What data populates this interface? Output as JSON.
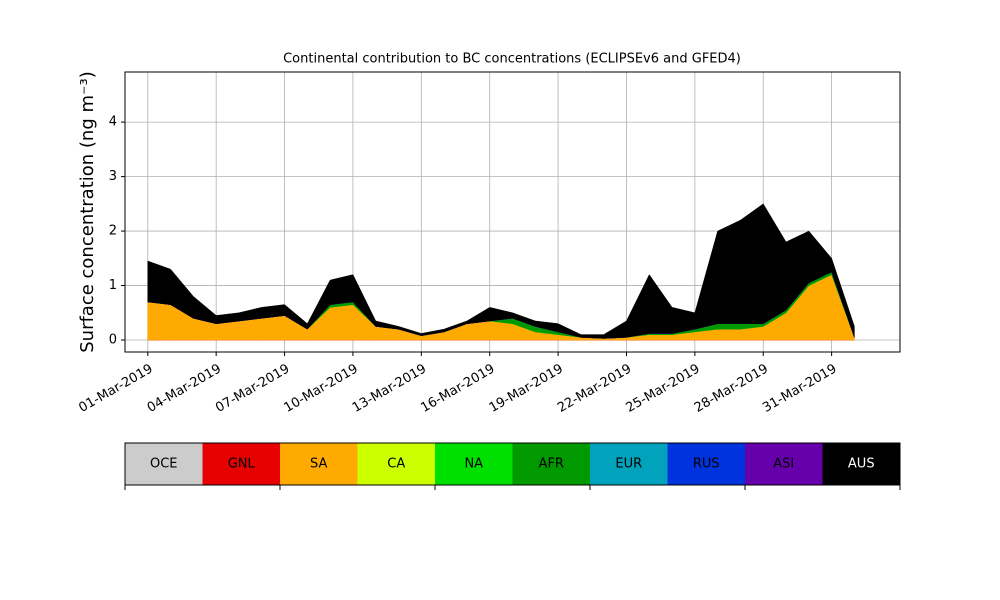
{
  "chart_data": {
    "type": "stacked_area",
    "title": "Continental contribution to BC concentrations (ECLIPSEv6 and GFED4)",
    "y_label": "Surface concentration (ng m⁻³)",
    "x": [
      "2019-03-01",
      "2019-03-02",
      "2019-03-03",
      "2019-03-04",
      "2019-03-05",
      "2019-03-06",
      "2019-03-07",
      "2019-03-08",
      "2019-03-09",
      "2019-03-10",
      "2019-03-11",
      "2019-03-12",
      "2019-03-13",
      "2019-03-14",
      "2019-03-15",
      "2019-03-16",
      "2019-03-17",
      "2019-03-18",
      "2019-03-19",
      "2019-03-20",
      "2019-03-21",
      "2019-03-22",
      "2019-03-23",
      "2019-03-24",
      "2019-03-25",
      "2019-03-26",
      "2019-03-27",
      "2019-03-28",
      "2019-03-29",
      "2019-03-30",
      "2019-03-31",
      "2019-04-01"
    ],
    "series": [
      {
        "name": "OCE",
        "color": "#cccccc",
        "values": [
          0,
          0,
          0,
          0,
          0,
          0,
          0,
          0,
          0,
          0,
          0,
          0,
          0,
          0,
          0,
          0,
          0,
          0,
          0,
          0,
          0,
          0,
          0,
          0,
          0,
          0,
          0,
          0,
          0,
          0,
          0,
          0
        ]
      },
      {
        "name": "GNL",
        "color": "#e60000",
        "values": [
          0,
          0,
          0,
          0,
          0,
          0,
          0,
          0,
          0,
          0,
          0,
          0,
          0,
          0,
          0,
          0,
          0,
          0,
          0,
          0,
          0,
          0,
          0,
          0,
          0,
          0,
          0,
          0,
          0,
          0,
          0,
          0
        ]
      },
      {
        "name": "SA",
        "color": "#ffaa00",
        "values": [
          0.7,
          0.65,
          0.4,
          0.3,
          0.35,
          0.4,
          0.45,
          0.2,
          0.6,
          0.65,
          0.25,
          0.2,
          0.08,
          0.15,
          0.3,
          0.35,
          0.3,
          0.15,
          0.1,
          0.05,
          0.03,
          0.05,
          0.1,
          0.1,
          0.15,
          0.2,
          0.2,
          0.25,
          0.5,
          1.0,
          1.2,
          0.05
        ]
      },
      {
        "name": "CA",
        "color": "#ccff00",
        "values": [
          0,
          0,
          0,
          0,
          0,
          0,
          0,
          0,
          0,
          0,
          0,
          0,
          0,
          0,
          0,
          0,
          0,
          0,
          0,
          0,
          0,
          0,
          0,
          0,
          0,
          0,
          0,
          0,
          0,
          0,
          0,
          0
        ]
      },
      {
        "name": "NA",
        "color": "#00e000",
        "values": [
          0,
          0,
          0,
          0,
          0,
          0,
          0,
          0,
          0,
          0,
          0,
          0,
          0,
          0,
          0,
          0,
          0,
          0,
          0,
          0,
          0,
          0,
          0,
          0,
          0,
          0,
          0,
          0,
          0,
          0,
          0,
          0
        ]
      },
      {
        "name": "AFR",
        "color": "#009900",
        "values": [
          0,
          0,
          0,
          0,
          0,
          0,
          0,
          0,
          0.05,
          0.05,
          0,
          0,
          0,
          0,
          0,
          0,
          0.1,
          0.1,
          0.05,
          0,
          0,
          0,
          0.02,
          0.02,
          0.05,
          0.1,
          0.1,
          0.05,
          0.05,
          0.05,
          0.05,
          0
        ]
      },
      {
        "name": "EUR",
        "color": "#00a3bb",
        "values": [
          0,
          0,
          0,
          0,
          0,
          0,
          0,
          0,
          0,
          0,
          0,
          0,
          0,
          0,
          0,
          0,
          0,
          0,
          0,
          0,
          0,
          0,
          0,
          0,
          0,
          0,
          0,
          0,
          0,
          0,
          0,
          0
        ]
      },
      {
        "name": "RUS",
        "color": "#0033dd",
        "values": [
          0,
          0,
          0,
          0,
          0,
          0,
          0,
          0,
          0,
          0,
          0,
          0,
          0,
          0,
          0,
          0,
          0,
          0,
          0,
          0,
          0,
          0,
          0,
          0,
          0,
          0,
          0,
          0,
          0,
          0,
          0,
          0
        ]
      },
      {
        "name": "ASI",
        "color": "#6600aa",
        "values": [
          0,
          0,
          0,
          0,
          0,
          0,
          0,
          0,
          0,
          0,
          0,
          0,
          0,
          0,
          0,
          0,
          0,
          0,
          0,
          0,
          0,
          0,
          0,
          0,
          0,
          0,
          0,
          0,
          0,
          0,
          0,
          0
        ]
      },
      {
        "name": "AUS",
        "color": "#000000",
        "values": [
          0.75,
          0.65,
          0.4,
          0.15,
          0.15,
          0.2,
          0.2,
          0.1,
          0.45,
          0.5,
          0.1,
          0.05,
          0.04,
          0.05,
          0.05,
          0.25,
          0.1,
          0.1,
          0.15,
          0.05,
          0.07,
          0.3,
          1.08,
          0.48,
          0.3,
          1.7,
          1.9,
          2.2,
          1.25,
          0.95,
          0.25,
          0.2
        ]
      }
    ],
    "xlim": [
      "2019-02-28",
      "2019-04-03"
    ],
    "xticks": [
      {
        "value": "2019-03-01",
        "label": "01-Mar-2019"
      },
      {
        "value": "2019-03-04",
        "label": "04-Mar-2019"
      },
      {
        "value": "2019-03-07",
        "label": "07-Mar-2019"
      },
      {
        "value": "2019-03-10",
        "label": "10-Mar-2019"
      },
      {
        "value": "2019-03-13",
        "label": "13-Mar-2019"
      },
      {
        "value": "2019-03-16",
        "label": "16-Mar-2019"
      },
      {
        "value": "2019-03-19",
        "label": "19-Mar-2019"
      },
      {
        "value": "2019-03-22",
        "label": "22-Mar-2019"
      },
      {
        "value": "2019-03-25",
        "label": "25-Mar-2019"
      },
      {
        "value": "2019-03-28",
        "label": "28-Mar-2019"
      },
      {
        "value": "2019-03-31",
        "label": "31-Mar-2019"
      }
    ],
    "ylim": [
      -0.22,
      4.92
    ],
    "yticks": [
      0,
      1,
      2,
      3,
      4
    ],
    "grid": true
  }
}
